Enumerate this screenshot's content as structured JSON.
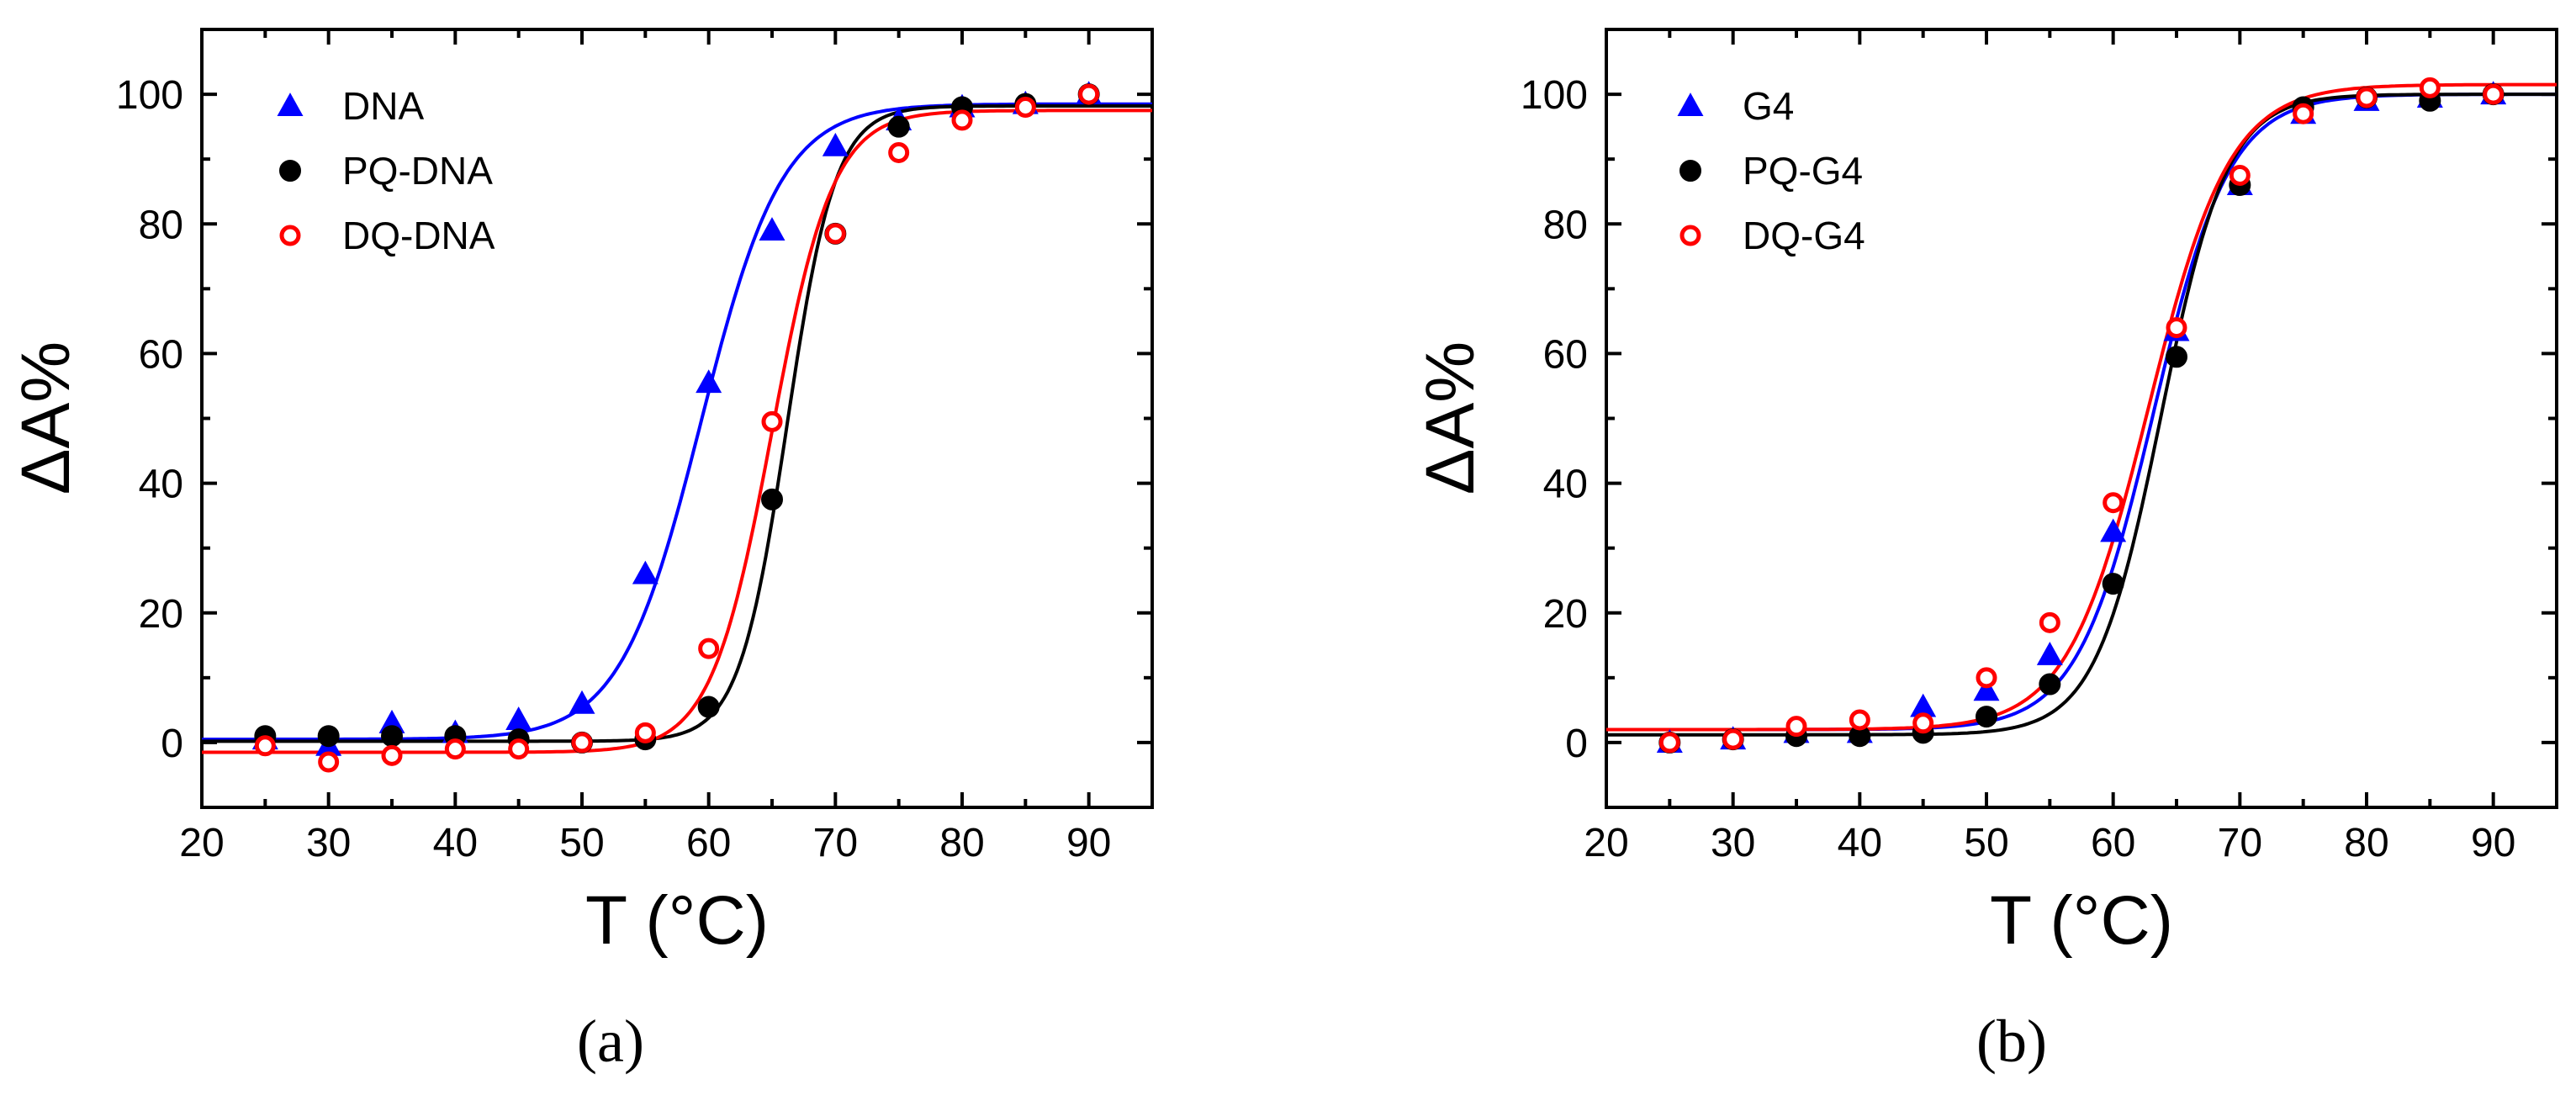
{
  "chart_data": [
    {
      "type": "scatter",
      "panel_label": "(a)",
      "xlabel": "T (°C)",
      "ylabel": "ΔA%",
      "xlim": [
        20,
        95
      ],
      "ylim": [
        -10,
        110
      ],
      "xticks": [
        20,
        30,
        40,
        50,
        60,
        70,
        80,
        90
      ],
      "yticks": [
        0,
        20,
        40,
        60,
        80,
        100
      ],
      "legend_position": "top-left",
      "series": [
        {
          "name": "DNA",
          "marker": "triangle",
          "filled": true,
          "color": "#0000ff",
          "x": [
            25,
            30,
            35,
            40,
            45,
            50,
            55,
            60,
            65,
            70,
            75,
            80,
            85,
            90
          ],
          "y": [
            0.5,
            -0.5,
            3,
            1.5,
            3.5,
            6,
            26,
            55.5,
            79,
            92,
            96,
            98,
            98.5,
            100
          ],
          "fit": {
            "bottom": 0.5,
            "top": 98.5,
            "tm": 59.4,
            "slope": 3.2
          }
        },
        {
          "name": "PQ-DNA",
          "marker": "circle",
          "filled": true,
          "color": "#000000",
          "x": [
            25,
            30,
            35,
            40,
            45,
            50,
            55,
            60,
            65,
            70,
            75,
            80,
            85,
            90
          ],
          "y": [
            1,
            1,
            1,
            1,
            0.5,
            0,
            0.5,
            5.5,
            37.5,
            78.5,
            95,
            98,
            98.5,
            100
          ],
          "fit": {
            "bottom": 0.2,
            "top": 98.2,
            "tm": 66.2,
            "slope": 1.9
          }
        },
        {
          "name": "DQ-DNA",
          "marker": "circle",
          "filled": false,
          "color": "#ff0000",
          "x": [
            25,
            30,
            35,
            40,
            45,
            50,
            55,
            60,
            65,
            70,
            75,
            80,
            85,
            90
          ],
          "y": [
            -0.5,
            -3,
            -2,
            -1,
            -1,
            0,
            1.5,
            14.5,
            49.5,
            78.5,
            91,
            96,
            98,
            100
          ],
          "fit": {
            "bottom": -1.5,
            "top": 97.5,
            "tm": 65,
            "slope": 2.4
          }
        }
      ]
    },
    {
      "type": "scatter",
      "panel_label": "(b)",
      "xlabel": "T (°C)",
      "ylabel": "ΔA%",
      "xlim": [
        20,
        95
      ],
      "ylim": [
        -10,
        110
      ],
      "xticks": [
        20,
        30,
        40,
        50,
        60,
        70,
        80,
        90
      ],
      "yticks": [
        0,
        20,
        40,
        60,
        80,
        100
      ],
      "legend_position": "top-left",
      "series": [
        {
          "name": "G4",
          "marker": "triangle",
          "filled": true,
          "color": "#0000ff",
          "x": [
            25,
            30,
            35,
            40,
            45,
            50,
            55,
            60,
            65,
            70,
            75,
            80,
            85,
            90
          ],
          "y": [
            0,
            0.5,
            1.5,
            1.5,
            5.5,
            8,
            13.5,
            32.5,
            63.5,
            86,
            97,
            99,
            99.5,
            100
          ],
          "fit": {
            "bottom": 2,
            "top": 100,
            "tm": 63.2,
            "slope": 3.0
          }
        },
        {
          "name": "PQ-G4",
          "marker": "circle",
          "filled": true,
          "color": "#000000",
          "x": [
            25,
            30,
            35,
            40,
            45,
            50,
            55,
            60,
            65,
            70,
            75,
            80,
            85,
            90
          ],
          "y": [
            0,
            0.5,
            1,
            1,
            1.5,
            4,
            9,
            24.5,
            59.5,
            86,
            98,
            99.5,
            99,
            100
          ],
          "fit": {
            "bottom": 1.2,
            "top": 100,
            "tm": 63.8,
            "slope": 2.6
          }
        },
        {
          "name": "DQ-G4",
          "marker": "circle",
          "filled": false,
          "color": "#ff0000",
          "x": [
            25,
            30,
            35,
            40,
            45,
            50,
            55,
            60,
            65,
            70,
            75,
            80,
            85,
            90
          ],
          "y": [
            0,
            0.5,
            2.5,
            3.5,
            3,
            10,
            18.5,
            37,
            64,
            87.5,
            97,
            99.5,
            101,
            100
          ],
          "fit": {
            "bottom": 2,
            "top": 101.5,
            "tm": 62.8,
            "slope": 3.2
          }
        }
      ]
    }
  ]
}
